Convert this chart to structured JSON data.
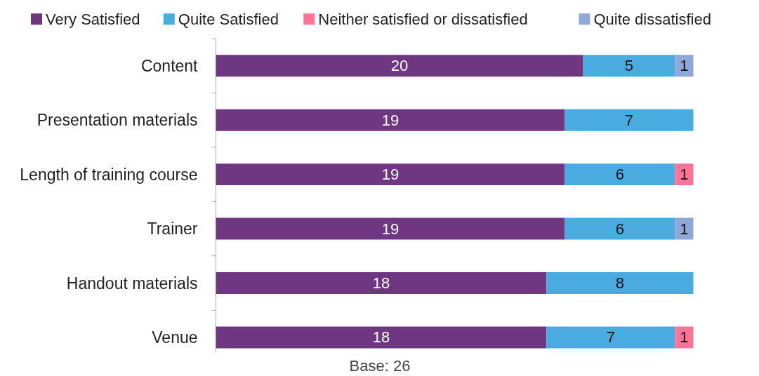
{
  "chart_data": {
    "type": "bar",
    "orientation": "horizontal",
    "stacked": true,
    "data_labels": true,
    "legend": "top",
    "grid": false,
    "xlabel": "Base: 26",
    "categories": [
      "Content",
      "Presentation materials",
      "Length of training course",
      "Trainer",
      "Handout materials",
      "Venue"
    ],
    "series": [
      {
        "name": "Very Satisfied",
        "color": "#6f3682",
        "values": [
          20,
          19,
          19,
          19,
          18,
          18
        ]
      },
      {
        "name": "Quite Satisfied",
        "color": "#4aabe0",
        "values": [
          5,
          7,
          6,
          6,
          8,
          7
        ]
      },
      {
        "name": "Neither satisfied or dissatisfied",
        "color": "#fd7496",
        "values": [
          null,
          null,
          1,
          null,
          null,
          1
        ]
      },
      {
        "name": "Quite dissatisfied",
        "color": "#8fa8d8",
        "values": [
          1,
          null,
          null,
          1,
          null,
          null
        ]
      }
    ]
  }
}
